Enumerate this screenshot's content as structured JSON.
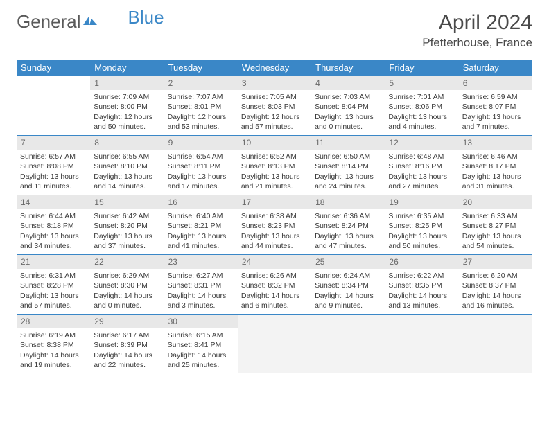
{
  "logo": {
    "text1": "General",
    "text2": "Blue"
  },
  "title": "April 2024",
  "location": "Pfetterhouse, France",
  "colors": {
    "header_bg": "#3a87c7",
    "daynum_bg": "#e8e8e8",
    "blank_bg": "#f3f3f3",
    "text": "#3a3a3a",
    "border": "#3a87c7"
  },
  "day_headers": [
    "Sunday",
    "Monday",
    "Tuesday",
    "Wednesday",
    "Thursday",
    "Friday",
    "Saturday"
  ],
  "weeks": [
    [
      null,
      {
        "n": "1",
        "sr": "Sunrise: 7:09 AM",
        "ss": "Sunset: 8:00 PM",
        "d1": "Daylight: 12 hours",
        "d2": "and 50 minutes."
      },
      {
        "n": "2",
        "sr": "Sunrise: 7:07 AM",
        "ss": "Sunset: 8:01 PM",
        "d1": "Daylight: 12 hours",
        "d2": "and 53 minutes."
      },
      {
        "n": "3",
        "sr": "Sunrise: 7:05 AM",
        "ss": "Sunset: 8:03 PM",
        "d1": "Daylight: 12 hours",
        "d2": "and 57 minutes."
      },
      {
        "n": "4",
        "sr": "Sunrise: 7:03 AM",
        "ss": "Sunset: 8:04 PM",
        "d1": "Daylight: 13 hours",
        "d2": "and 0 minutes."
      },
      {
        "n": "5",
        "sr": "Sunrise: 7:01 AM",
        "ss": "Sunset: 8:06 PM",
        "d1": "Daylight: 13 hours",
        "d2": "and 4 minutes."
      },
      {
        "n": "6",
        "sr": "Sunrise: 6:59 AM",
        "ss": "Sunset: 8:07 PM",
        "d1": "Daylight: 13 hours",
        "d2": "and 7 minutes."
      }
    ],
    [
      {
        "n": "7",
        "sr": "Sunrise: 6:57 AM",
        "ss": "Sunset: 8:08 PM",
        "d1": "Daylight: 13 hours",
        "d2": "and 11 minutes."
      },
      {
        "n": "8",
        "sr": "Sunrise: 6:55 AM",
        "ss": "Sunset: 8:10 PM",
        "d1": "Daylight: 13 hours",
        "d2": "and 14 minutes."
      },
      {
        "n": "9",
        "sr": "Sunrise: 6:54 AM",
        "ss": "Sunset: 8:11 PM",
        "d1": "Daylight: 13 hours",
        "d2": "and 17 minutes."
      },
      {
        "n": "10",
        "sr": "Sunrise: 6:52 AM",
        "ss": "Sunset: 8:13 PM",
        "d1": "Daylight: 13 hours",
        "d2": "and 21 minutes."
      },
      {
        "n": "11",
        "sr": "Sunrise: 6:50 AM",
        "ss": "Sunset: 8:14 PM",
        "d1": "Daylight: 13 hours",
        "d2": "and 24 minutes."
      },
      {
        "n": "12",
        "sr": "Sunrise: 6:48 AM",
        "ss": "Sunset: 8:16 PM",
        "d1": "Daylight: 13 hours",
        "d2": "and 27 minutes."
      },
      {
        "n": "13",
        "sr": "Sunrise: 6:46 AM",
        "ss": "Sunset: 8:17 PM",
        "d1": "Daylight: 13 hours",
        "d2": "and 31 minutes."
      }
    ],
    [
      {
        "n": "14",
        "sr": "Sunrise: 6:44 AM",
        "ss": "Sunset: 8:18 PM",
        "d1": "Daylight: 13 hours",
        "d2": "and 34 minutes."
      },
      {
        "n": "15",
        "sr": "Sunrise: 6:42 AM",
        "ss": "Sunset: 8:20 PM",
        "d1": "Daylight: 13 hours",
        "d2": "and 37 minutes."
      },
      {
        "n": "16",
        "sr": "Sunrise: 6:40 AM",
        "ss": "Sunset: 8:21 PM",
        "d1": "Daylight: 13 hours",
        "d2": "and 41 minutes."
      },
      {
        "n": "17",
        "sr": "Sunrise: 6:38 AM",
        "ss": "Sunset: 8:23 PM",
        "d1": "Daylight: 13 hours",
        "d2": "and 44 minutes."
      },
      {
        "n": "18",
        "sr": "Sunrise: 6:36 AM",
        "ss": "Sunset: 8:24 PM",
        "d1": "Daylight: 13 hours",
        "d2": "and 47 minutes."
      },
      {
        "n": "19",
        "sr": "Sunrise: 6:35 AM",
        "ss": "Sunset: 8:25 PM",
        "d1": "Daylight: 13 hours",
        "d2": "and 50 minutes."
      },
      {
        "n": "20",
        "sr": "Sunrise: 6:33 AM",
        "ss": "Sunset: 8:27 PM",
        "d1": "Daylight: 13 hours",
        "d2": "and 54 minutes."
      }
    ],
    [
      {
        "n": "21",
        "sr": "Sunrise: 6:31 AM",
        "ss": "Sunset: 8:28 PM",
        "d1": "Daylight: 13 hours",
        "d2": "and 57 minutes."
      },
      {
        "n": "22",
        "sr": "Sunrise: 6:29 AM",
        "ss": "Sunset: 8:30 PM",
        "d1": "Daylight: 14 hours",
        "d2": "and 0 minutes."
      },
      {
        "n": "23",
        "sr": "Sunrise: 6:27 AM",
        "ss": "Sunset: 8:31 PM",
        "d1": "Daylight: 14 hours",
        "d2": "and 3 minutes."
      },
      {
        "n": "24",
        "sr": "Sunrise: 6:26 AM",
        "ss": "Sunset: 8:32 PM",
        "d1": "Daylight: 14 hours",
        "d2": "and 6 minutes."
      },
      {
        "n": "25",
        "sr": "Sunrise: 6:24 AM",
        "ss": "Sunset: 8:34 PM",
        "d1": "Daylight: 14 hours",
        "d2": "and 9 minutes."
      },
      {
        "n": "26",
        "sr": "Sunrise: 6:22 AM",
        "ss": "Sunset: 8:35 PM",
        "d1": "Daylight: 14 hours",
        "d2": "and 13 minutes."
      },
      {
        "n": "27",
        "sr": "Sunrise: 6:20 AM",
        "ss": "Sunset: 8:37 PM",
        "d1": "Daylight: 14 hours",
        "d2": "and 16 minutes."
      }
    ],
    [
      {
        "n": "28",
        "sr": "Sunrise: 6:19 AM",
        "ss": "Sunset: 8:38 PM",
        "d1": "Daylight: 14 hours",
        "d2": "and 19 minutes."
      },
      {
        "n": "29",
        "sr": "Sunrise: 6:17 AM",
        "ss": "Sunset: 8:39 PM",
        "d1": "Daylight: 14 hours",
        "d2": "and 22 minutes."
      },
      {
        "n": "30",
        "sr": "Sunrise: 6:15 AM",
        "ss": "Sunset: 8:41 PM",
        "d1": "Daylight: 14 hours",
        "d2": "and 25 minutes."
      },
      "blank",
      "blank",
      "blank",
      "blank"
    ]
  ]
}
